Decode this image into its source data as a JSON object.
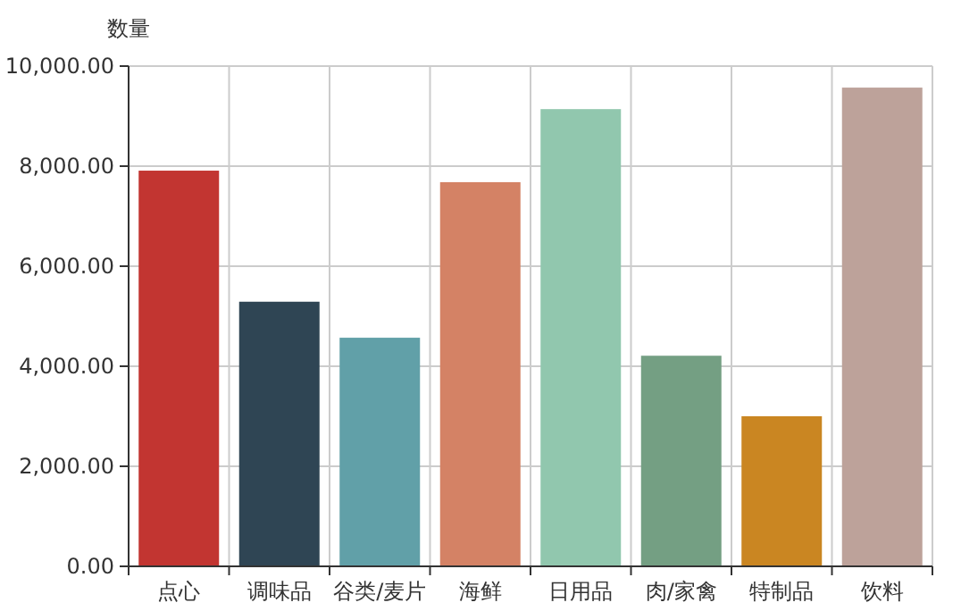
{
  "chart_data": {
    "type": "bar",
    "ylabel": "数量",
    "categories": [
      "点心",
      "调味品",
      "谷类/麦片",
      "海鲜",
      "日用品",
      "肉/家禽",
      "特制品",
      "饮料"
    ],
    "values": [
      7910,
      5290,
      4570,
      7680,
      9140,
      4210,
      3000,
      9570
    ],
    "colors": [
      "#c23531",
      "#2f4554",
      "#61a0a8",
      "#d48265",
      "#91c7ae",
      "#749f83",
      "#ca8622",
      "#bda29a"
    ],
    "ylim": [
      0,
      10000
    ],
    "yticks": [
      {
        "value": 0,
        "label": "0.00"
      },
      {
        "value": 2000,
        "label": "2,000.00"
      },
      {
        "value": 4000,
        "label": "4,000.00"
      },
      {
        "value": 6000,
        "label": "6,000.00"
      },
      {
        "value": 8000,
        "label": "8,000.00"
      },
      {
        "value": 10000,
        "label": "10,000.00"
      }
    ],
    "grid": true
  }
}
